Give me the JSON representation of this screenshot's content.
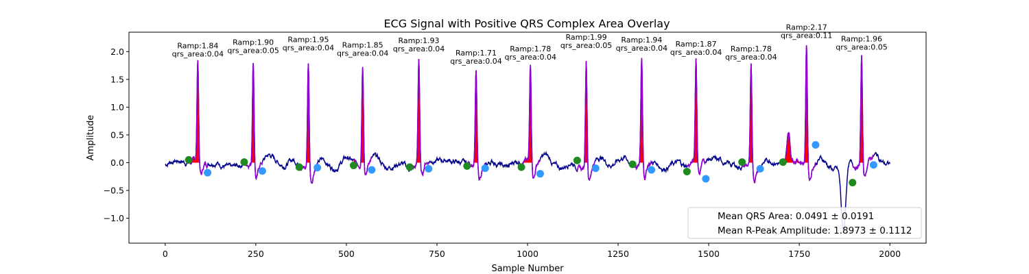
{
  "chart_data": {
    "type": "line",
    "title": "ECG Signal with Positive QRS Complex Area Overlay",
    "xlabel": "Sample Number",
    "ylabel": "Amplitude",
    "xlim": [
      -100,
      2100
    ],
    "ylim": [
      -1.45,
      2.35
    ],
    "xticks": [
      0,
      250,
      500,
      750,
      1000,
      1250,
      1500,
      1750,
      2000
    ],
    "xtick_labels": [
      "0",
      "250",
      "500",
      "750",
      "1000",
      "1250",
      "1500",
      "1750",
      "2000"
    ],
    "yticks": [
      -1.0,
      -0.5,
      0.0,
      0.5,
      1.0,
      1.5,
      2.0
    ],
    "ytick_labels": [
      "−1.0",
      "−0.5",
      "0.0",
      "0.5",
      "1.0",
      "1.5",
      "2.0"
    ],
    "grid": false,
    "colors": {
      "signal": "#00008b",
      "qrs_segment": "#9400d3",
      "qrs_fill": "#ff0000",
      "onset_marker": "#1f8a1f",
      "offset_marker": "#3399ff"
    },
    "beats": [
      {
        "r_x": 90,
        "r_amp": 1.84,
        "ramp_label": "Ramp:1.84",
        "area_label": "qrs_area:0.04",
        "onset_x": 65,
        "onset_y": 0.05,
        "offset_x": 117,
        "offset_y": -0.18
      },
      {
        "r_x": 243,
        "r_amp": 1.9,
        "ramp_label": "Ramp:1.90",
        "area_label": "qrs_area:0.05",
        "onset_x": 218,
        "onset_y": 0.01,
        "offset_x": 268,
        "offset_y": -0.15
      },
      {
        "r_x": 395,
        "r_amp": 1.95,
        "ramp_label": "Ramp:1.95",
        "area_label": "qrs_area:0.04",
        "onset_x": 370,
        "onset_y": -0.08,
        "offset_x": 420,
        "offset_y": -0.09
      },
      {
        "r_x": 545,
        "r_amp": 1.85,
        "ramp_label": "Ramp:1.85",
        "area_label": "qrs_area:0.04",
        "onset_x": 520,
        "onset_y": -0.05,
        "offset_x": 570,
        "offset_y": -0.13
      },
      {
        "r_x": 700,
        "r_amp": 1.93,
        "ramp_label": "Ramp:1.93",
        "area_label": "qrs_area:0.04",
        "onset_x": 675,
        "onset_y": -0.08,
        "offset_x": 727,
        "offset_y": -0.11
      },
      {
        "r_x": 858,
        "r_amp": 1.71,
        "ramp_label": "Ramp:1.71",
        "area_label": "qrs_area:0.04",
        "onset_x": 833,
        "onset_y": -0.06,
        "offset_x": 883,
        "offset_y": -0.1
      },
      {
        "r_x": 1008,
        "r_amp": 1.78,
        "ramp_label": "Ramp:1.78",
        "area_label": "qrs_area:0.04",
        "onset_x": 983,
        "onset_y": -0.08,
        "offset_x": 1035,
        "offset_y": -0.2
      },
      {
        "r_x": 1162,
        "r_amp": 1.99,
        "ramp_label": "Ramp:1.99",
        "area_label": "qrs_area:0.05",
        "onset_x": 1137,
        "onset_y": 0.04,
        "offset_x": 1188,
        "offset_y": -0.1
      },
      {
        "r_x": 1315,
        "r_amp": 1.94,
        "ramp_label": "Ramp:1.94",
        "area_label": "qrs_area:0.04",
        "onset_x": 1290,
        "onset_y": -0.03,
        "offset_x": 1342,
        "offset_y": -0.13
      },
      {
        "r_x": 1465,
        "r_amp": 1.87,
        "ramp_label": "Ramp:1.87",
        "area_label": "qrs_area:0.04",
        "onset_x": 1440,
        "onset_y": -0.16,
        "offset_x": 1492,
        "offset_y": -0.29
      },
      {
        "r_x": 1617,
        "r_amp": 1.78,
        "ramp_label": "Ramp:1.78",
        "area_label": "qrs_area:0.04",
        "onset_x": 1592,
        "onset_y": 0.01,
        "offset_x": 1642,
        "offset_y": -0.11
      },
      {
        "r_x": 1770,
        "r_amp": 2.17,
        "ramp_label": "Ramp:2.17",
        "area_label": "qrs_area:0.11",
        "onset_x": 1705,
        "onset_y": 0.01,
        "offset_x": 1795,
        "offset_y": 0.32
      },
      {
        "r_x": 1922,
        "r_amp": 1.96,
        "ramp_label": "Ramp:1.96",
        "area_label": "qrs_area:0.05",
        "onset_x": 1897,
        "onset_y": -0.36,
        "offset_x": 1955,
        "offset_y": -0.04
      }
    ],
    "legend": {
      "placement": "lower right",
      "entries": [
        "Mean QRS Area: 0.0491 ± 0.0191",
        "Mean R-Peak Amplitude: 1.8973 ± 0.1112"
      ]
    }
  }
}
